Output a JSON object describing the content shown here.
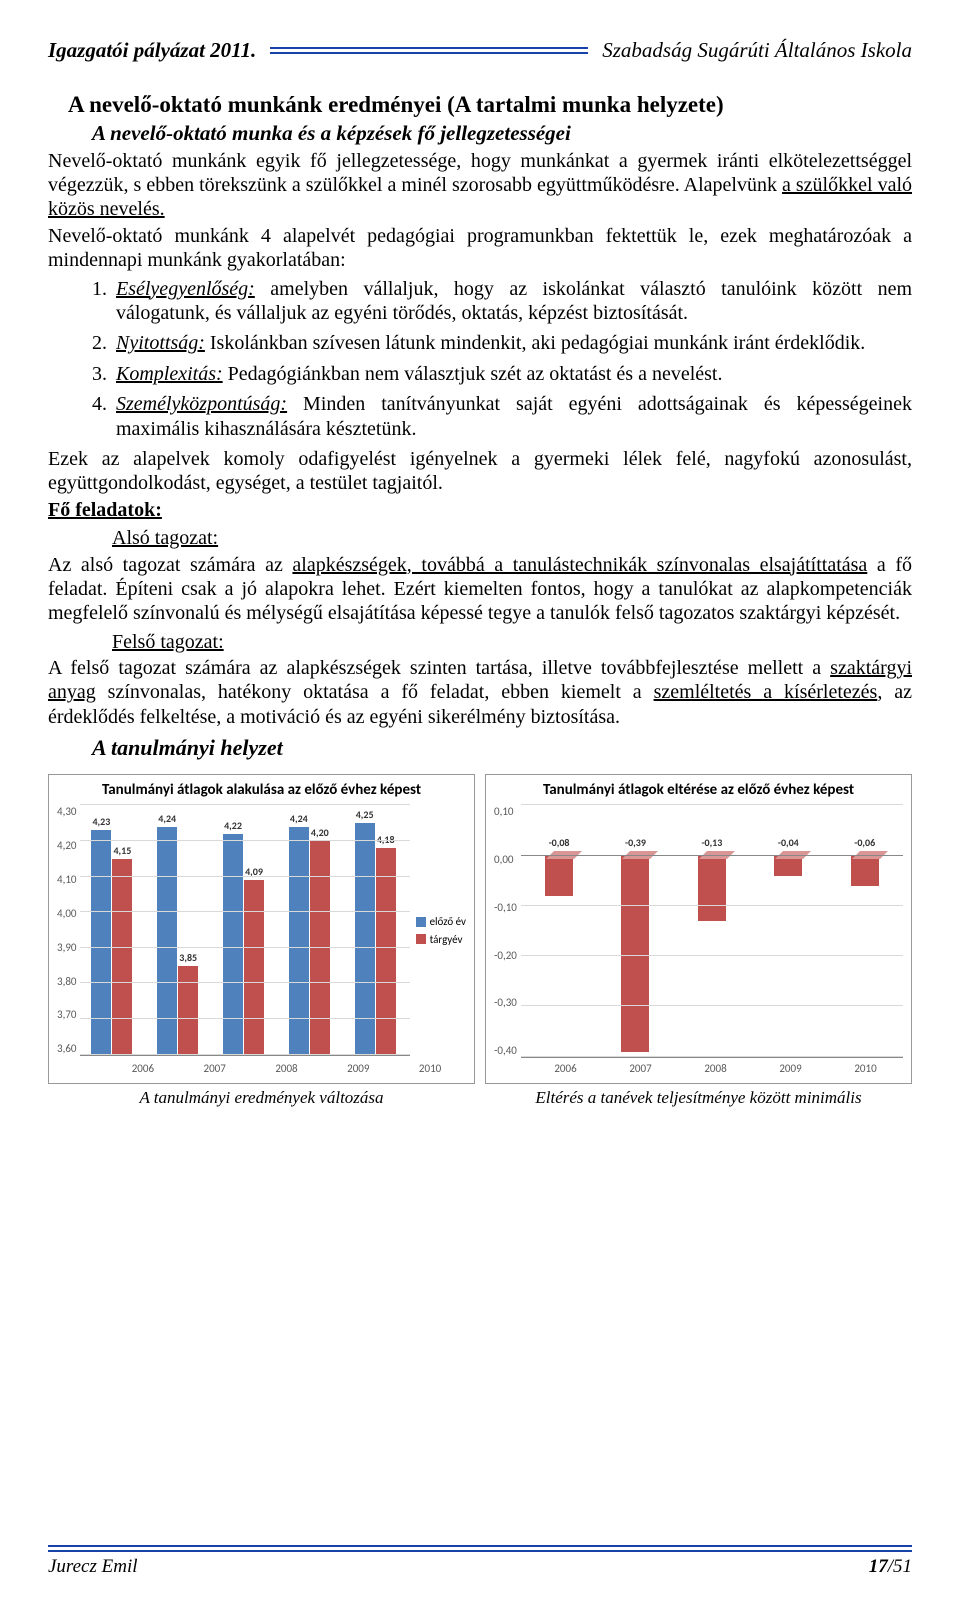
{
  "header": {
    "left": "Igazgatói pályázat 2011.",
    "right": "Szabadság Sugárúti Általános Iskola"
  },
  "h2": "A nevelő-oktató munkánk eredményei (A tartalmi munka helyzete)",
  "h3": "A nevelő-oktató munka és a képzések fő jellegzetességei",
  "p1": "Nevelő-oktató munkánk egyik fő jellegzetessége, hogy munkánkat a gyermek iránti elkötelezettséggel végezzük, s ebben törekszünk a szülőkkel a minél szorosabb együttműködésre. Alapelvünk ",
  "p1u": "a szülőkkel való közös nevelés.",
  "p2": "Nevelő-oktató munkánk 4 alapelvét pedagógiai programunkban fektettük le, ezek meghatározóak a mindennapi munkánk gyakorlatában:",
  "list": [
    {
      "term": "Esélyegyenlőség:",
      "rest": " amelyben vállaljuk, hogy az iskolánkat választó tanulóink között nem válogatunk, és vállaljuk az egyéni törődés, oktatás, képzést biztosítását."
    },
    {
      "term": "Nyitottság:",
      "rest": " Iskolánkban szívesen látunk mindenkit, aki pedagógiai munkánk iránt érdeklődik."
    },
    {
      "term": "Komplexitás:",
      "rest": " Pedagógiánkban nem választjuk szét az oktatást és a nevelést."
    },
    {
      "term": "Személyközpontúság:",
      "rest": " Minden tanítványunkat saját egyéni adottságainak és képességeinek maximális kihasználására késztetünk."
    }
  ],
  "p3": "Ezek az alapelvek komoly odafigyelést igényelnek a gyermeki lélek felé, nagyfokú azonosulást, együttgondolkodást, egységet, a testület tagjaitól.",
  "fo": "Fő feladatok:",
  "also": "Alsó tagozat:",
  "p4a": "Az alsó tagozat számára az ",
  "p4u": "alapkészségek, továbbá a tanulástechnikák színvonalas elsajátíttatása",
  "p4b": " a fő feladat. Építeni csak a jó alapokra lehet. Ezért kiemelten fontos, hogy a tanulókat az alapkompetenciák megfelelő színvonalú és mélységű elsajátítása képessé tegye a tanulók felső tagozatos szaktárgyi képzését.",
  "felso": "Felső tagozat:",
  "p5a": "A felső tagozat számára az alapkészségek szinten tartása, illetve továbbfejlesztése mellett a ",
  "p5u1": "szaktárgyi anyag",
  "p5b": " színvonalas, hatékony oktatása a fő feladat, ebben kiemelt a ",
  "p5u2": "szemléltetés a kísérletezés",
  "p5c": ", az érdeklődés felkeltése, a motiváció és az egyéni sikerélmény biztosítása.",
  "tanhely": "A tanulmányi helyzet",
  "chart1": {
    "type": "bar",
    "title": "Tanulmányi átlagok alakulása az előző évhez képest",
    "ymin": 3.6,
    "ymax": 4.3,
    "ystep": 0.1,
    "categories": [
      "2006",
      "2007",
      "2008",
      "2009",
      "2010"
    ],
    "series": [
      {
        "name": "előző év",
        "color": "#4f81bd",
        "values": [
          4.23,
          4.24,
          4.22,
          4.24,
          4.25
        ]
      },
      {
        "name": "tárgyév",
        "color": "#c0504d",
        "values": [
          4.15,
          3.85,
          4.09,
          4.2,
          4.18
        ]
      }
    ]
  },
  "chart2": {
    "type": "bar3d",
    "title": "Tanulmányi átlagok eltérése az előző évhez képest",
    "ymin": -0.4,
    "ymax": 0.1,
    "ystep": 0.1,
    "categories": [
      "2006",
      "2007",
      "2008",
      "2009",
      "2010"
    ],
    "series": {
      "color": "#c0504d",
      "color_top": "#d99694",
      "values": [
        -0.08,
        -0.39,
        -0.13,
        -0.04,
        -0.06
      ]
    }
  },
  "cap1": "A tanulmányi eredmények változása",
  "cap2": "Eltérés a tanévek teljesítménye között minimális",
  "footer": {
    "left": "Jurecz Emil",
    "right_pre": "17",
    "right_suf": "/51"
  }
}
